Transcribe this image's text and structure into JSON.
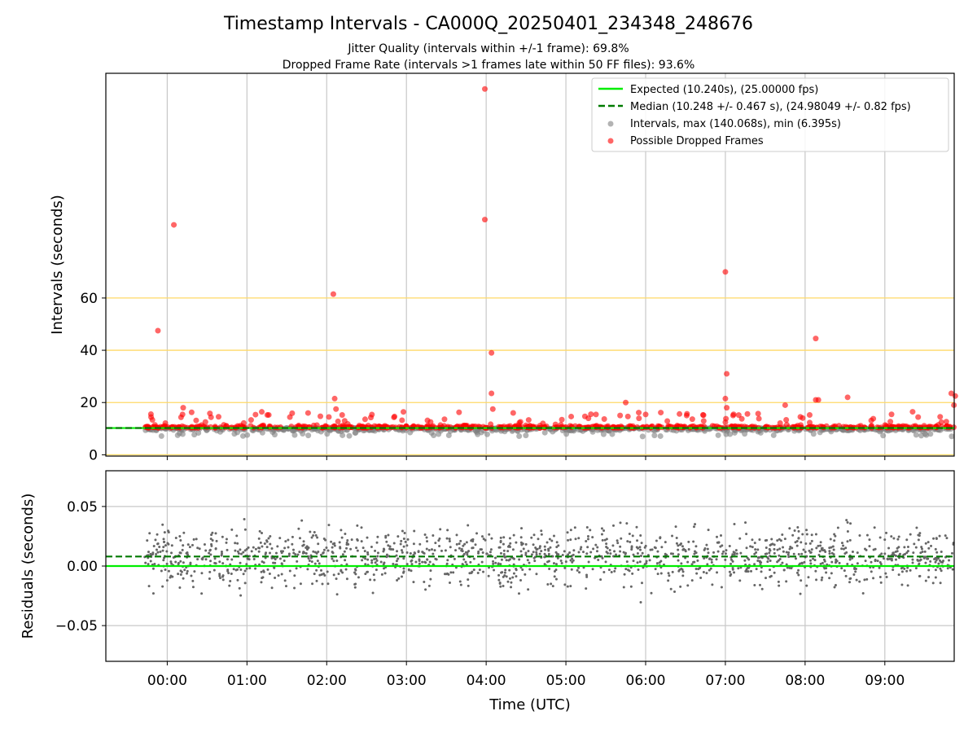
{
  "chart_data": [
    {
      "type": "scatter",
      "title": "Timestamp Intervals - CA000Q_20250401_234348_248676",
      "subtitles": [
        "Jitter Quality (intervals within +/-1 frame): 69.8%",
        "Dropped Frame Rate (intervals >1 frames late within 50 FF files): 93.6%"
      ],
      "xlabel": "",
      "ylabel": "Intervals (seconds)",
      "x_ticks": [
        "00:00",
        "01:00",
        "02:00",
        "03:00",
        "04:00",
        "05:00",
        "06:00",
        "07:00",
        "08:00",
        "09:00"
      ],
      "y_ticks": [
        0,
        20,
        40,
        60
      ],
      "ylim": [
        -0.5,
        146
      ],
      "xlim_hours": [
        -0.77,
        9.87
      ],
      "grid": true,
      "legend_position": "top-right",
      "reference_lines": [
        {
          "y": 20,
          "color": "#ffd966"
        },
        {
          "y": 40,
          "color": "#ffd966"
        },
        {
          "y": 60,
          "color": "#ffd966"
        },
        {
          "y": 0,
          "color": "#ffd966"
        }
      ],
      "series": [
        {
          "name": "Expected (10.240s), (25.00000 fps)",
          "style": "solid-line",
          "color": "#00ee00",
          "y": 10.24
        },
        {
          "name": "Median (10.248 +/- 0.467 s), (24.98049 +/- 0.82 fps)",
          "style": "dashed-line",
          "color": "#007a00",
          "y": 10.248
        },
        {
          "name": "Intervals, max (140.068s), min (6.395s)",
          "style": "points",
          "color": "#808080"
        },
        {
          "name": "Possible Dropped Frames",
          "style": "points",
          "color": "#ff0000"
        }
      ],
      "outliers": [
        {
          "x": "23:53",
          "y": 47.5
        },
        {
          "x": "00:05",
          "y": 88.0
        },
        {
          "x": "00:12",
          "y": 18.0
        },
        {
          "x": "02:05",
          "y": 61.5
        },
        {
          "x": "02:06",
          "y": 21.5
        },
        {
          "x": "02:07",
          "y": 17.5
        },
        {
          "x": "03:59",
          "y": 140.0
        },
        {
          "x": "03:59",
          "y": 90.0
        },
        {
          "x": "04:04",
          "y": 39.0
        },
        {
          "x": "04:04",
          "y": 23.5
        },
        {
          "x": "04:05",
          "y": 17.5
        },
        {
          "x": "05:45",
          "y": 20.0
        },
        {
          "x": "07:00",
          "y": 70.0
        },
        {
          "x": "07:01",
          "y": 31.0
        },
        {
          "x": "07:00",
          "y": 21.5
        },
        {
          "x": "07:01",
          "y": 18.0
        },
        {
          "x": "07:45",
          "y": 19.0
        },
        {
          "x": "08:08",
          "y": 44.5
        },
        {
          "x": "08:08",
          "y": 21.0
        },
        {
          "x": "08:10",
          "y": 21.0
        },
        {
          "x": "08:32",
          "y": 22.0
        },
        {
          "x": "09:50",
          "y": 23.5
        },
        {
          "x": "09:53",
          "y": 22.5
        },
        {
          "x": "09:52",
          "y": 19.0
        }
      ],
      "bulk_band": {
        "x_range": [
          "23:43",
          "09:52"
        ],
        "y_typical": [
          7.5,
          14.0
        ]
      }
    },
    {
      "type": "scatter",
      "xlabel": "Time (UTC)",
      "ylabel": "Residuals (seconds)",
      "x_ticks": [
        "00:00",
        "01:00",
        "02:00",
        "03:00",
        "04:00",
        "05:00",
        "06:00",
        "07:00",
        "08:00",
        "09:00"
      ],
      "y_ticks": [
        "0.05",
        "0.00",
        "−0.05"
      ],
      "ylim": [
        -0.08,
        0.08
      ],
      "grid": true,
      "reference_lines": [
        {
          "y": 0.0,
          "color": "#00ee00",
          "style": "solid"
        },
        {
          "y": 0.008,
          "color": "#007a00",
          "style": "dashed"
        }
      ],
      "points_color": "#666666",
      "bulk_band": {
        "x_range": [
          "23:43",
          "09:52"
        ],
        "y_typical": [
          -0.03,
          0.04
        ]
      }
    }
  ]
}
